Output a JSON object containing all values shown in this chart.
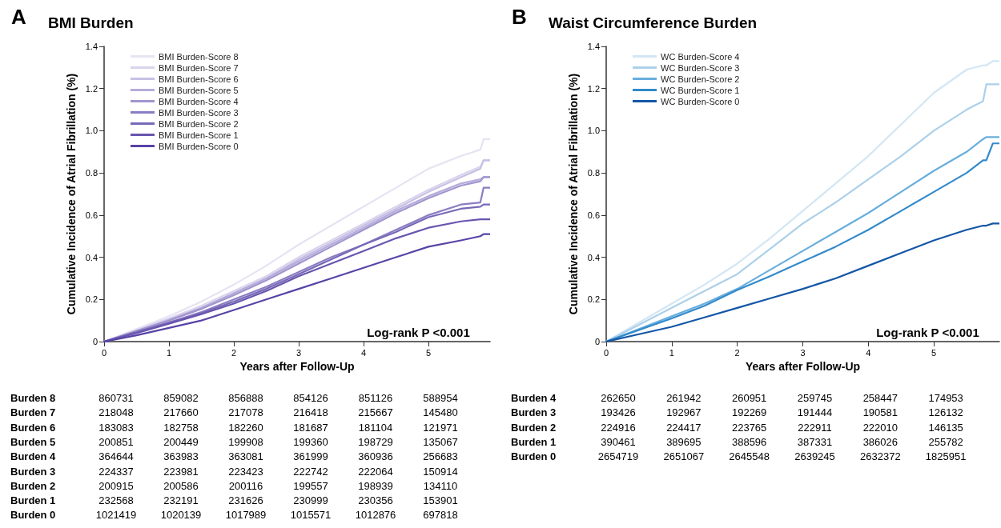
{
  "chart_data": [
    {
      "type": "line",
      "title": "BMI Burden",
      "xlabel": "Years after Follow-Up",
      "ylabel": "Cumulative Incidence of Atrial Fibrillation (%)",
      "xlim": [
        0,
        5.95
      ],
      "ylim": [
        0,
        1.4
      ],
      "xticks": [
        0,
        1,
        2,
        3,
        4,
        5
      ],
      "yticks": [
        0,
        0.2,
        0.4,
        0.6,
        0.8,
        {
          "value": 1,
          "label": "1.0"
        },
        1.2,
        1.4
      ],
      "grid": false,
      "legend": "top left",
      "marker": "none",
      "line_style": "solid",
      "x": [
        0,
        0.5,
        1,
        1.5,
        2,
        2.5,
        3,
        3.5,
        4,
        4.5,
        5,
        5.5,
        5.8,
        5.85,
        5.95
      ],
      "series": [
        {
          "name": "BMI Burden-Score 8",
          "color": "#e6e3f3",
          "values": [
            0,
            0.06,
            0.12,
            0.19,
            0.27,
            0.36,
            0.46,
            0.55,
            0.64,
            0.73,
            0.82,
            0.88,
            0.91,
            0.96,
            0.96
          ]
        },
        {
          "name": "BMI Burden-Score 7",
          "color": "#d9d4ed",
          "values": [
            0,
            0.055,
            0.11,
            0.17,
            0.24,
            0.31,
            0.4,
            0.48,
            0.56,
            0.64,
            0.72,
            0.79,
            0.83,
            0.86,
            0.86
          ]
        },
        {
          "name": "BMI Burden-Score 6",
          "color": "#c8c0e4",
          "values": [
            0,
            0.05,
            0.105,
            0.16,
            0.23,
            0.3,
            0.39,
            0.47,
            0.55,
            0.63,
            0.71,
            0.78,
            0.82,
            0.86,
            0.86
          ]
        },
        {
          "name": "BMI Burden-Score 5",
          "color": "#b6acda",
          "values": [
            0,
            0.05,
            0.1,
            0.16,
            0.23,
            0.3,
            0.38,
            0.46,
            0.54,
            0.62,
            0.69,
            0.75,
            0.77,
            0.78,
            0.78
          ]
        },
        {
          "name": "BMI Burden-Score 4",
          "color": "#a195cf",
          "values": [
            0,
            0.05,
            0.1,
            0.155,
            0.22,
            0.29,
            0.37,
            0.45,
            0.53,
            0.61,
            0.68,
            0.74,
            0.76,
            0.78,
            0.78
          ]
        },
        {
          "name": "BMI Burden-Score 3",
          "color": "#8b7dc3",
          "values": [
            0,
            0.045,
            0.09,
            0.14,
            0.2,
            0.26,
            0.33,
            0.4,
            0.46,
            0.53,
            0.6,
            0.65,
            0.66,
            0.73,
            0.73
          ]
        },
        {
          "name": "BMI Burden-Score 2",
          "color": "#7868b8",
          "values": [
            0,
            0.045,
            0.09,
            0.135,
            0.19,
            0.25,
            0.32,
            0.39,
            0.46,
            0.52,
            0.59,
            0.63,
            0.64,
            0.65,
            0.65
          ]
        },
        {
          "name": "BMI Burden-Score 1",
          "color": "#6955af",
          "values": [
            0,
            0.04,
            0.085,
            0.13,
            0.18,
            0.24,
            0.31,
            0.37,
            0.43,
            0.49,
            0.54,
            0.57,
            0.58,
            0.58,
            0.58
          ]
        },
        {
          "name": "BMI Burden-Score 0",
          "color": "#5843a6",
          "values": [
            0,
            0.03,
            0.065,
            0.1,
            0.15,
            0.2,
            0.25,
            0.3,
            0.35,
            0.4,
            0.45,
            0.48,
            0.5,
            0.51,
            0.51
          ]
        }
      ],
      "annotations": [
        "A",
        "Log-rank P <0.001",
        "Burden 8  860731  859082  856888  854126  851126  588954",
        "Burden 7  218048  217660  217078  216418  215667  145480",
        "Burden 6  183083  182758  182260  181687  181104  121971",
        "Burden 5  200851  200449  199908  199360  198729  135067",
        "Burden 4  364644  363983  363081  361999  360936  256683",
        "Burden 3  224337  223981  223423  222742  222064  150914",
        "Burden 2  200915  200586  200116  199557  198939  134110",
        "Burden 1  232568  232191  231626  230999  230356  153901",
        "Burden 0  1021419  1020139  1017989  1015571  1012876  697818"
      ]
    },
    {
      "type": "line",
      "title": "Waist Circumference Burden",
      "xlabel": "Years after Follow-Up",
      "ylabel": "Cumulative Incidence of Atrial Fibrillation (%)",
      "xlim": [
        0,
        6
      ],
      "ylim": [
        0,
        1.4
      ],
      "xticks": [
        0,
        1,
        2,
        3,
        4,
        5
      ],
      "yticks": [
        0,
        0.2,
        0.4,
        0.6,
        0.8,
        {
          "value": 1,
          "label": "1.0"
        },
        1.2,
        1.4
      ],
      "grid": false,
      "legend": "top left",
      "marker": "none",
      "line_style": "solid",
      "x": [
        0,
        0.5,
        1,
        1.5,
        2,
        2.5,
        3,
        3.5,
        4,
        4.5,
        5,
        5.5,
        5.75,
        5.8,
        5.9,
        6
      ],
      "series": [
        {
          "name": "WC Burden-Score 4",
          "color": "#d3e6f4",
          "values": [
            0,
            0.09,
            0.18,
            0.27,
            0.37,
            0.49,
            0.62,
            0.75,
            0.88,
            1.03,
            1.18,
            1.29,
            1.31,
            1.31,
            1.33,
            1.33
          ]
        },
        {
          "name": "WC Burden-Score 3",
          "color": "#acd0e9",
          "values": [
            0,
            0.08,
            0.16,
            0.24,
            0.32,
            0.44,
            0.56,
            0.66,
            0.77,
            0.88,
            1.0,
            1.1,
            1.14,
            1.22,
            1.22,
            1.22
          ]
        },
        {
          "name": "WC Burden-Score 2",
          "color": "#68aedd",
          "values": [
            0,
            0.06,
            0.12,
            0.18,
            0.25,
            0.34,
            0.43,
            0.52,
            0.61,
            0.71,
            0.81,
            0.9,
            0.96,
            0.97,
            0.97,
            0.97
          ]
        },
        {
          "name": "WC Burden-Score 1",
          "color": "#338acb",
          "values": [
            0,
            0.055,
            0.11,
            0.17,
            0.245,
            0.31,
            0.38,
            0.45,
            0.53,
            0.62,
            0.71,
            0.8,
            0.86,
            0.86,
            0.94,
            0.94
          ]
        },
        {
          "name": "WC Burden-Score 0",
          "color": "#1356a6",
          "values": [
            0,
            0.035,
            0.07,
            0.115,
            0.16,
            0.205,
            0.25,
            0.3,
            0.36,
            0.42,
            0.48,
            0.53,
            0.55,
            0.55,
            0.56,
            0.56
          ]
        }
      ],
      "annotations": [
        "B",
        "Log-rank P <0.001",
        "Burden 4  262650  261942  260951  259745  258447  174953",
        "Burden 3  193426  192967  192269  191444  190581  126132",
        "Burden 2  224916  224417  223765  222911  222010  146135",
        "Burden 1  390461  389695  388596  387331  386026  255782",
        "Burden 0  2654719  2651067  2645548  2639245  2632372  1825951"
      ]
    }
  ]
}
